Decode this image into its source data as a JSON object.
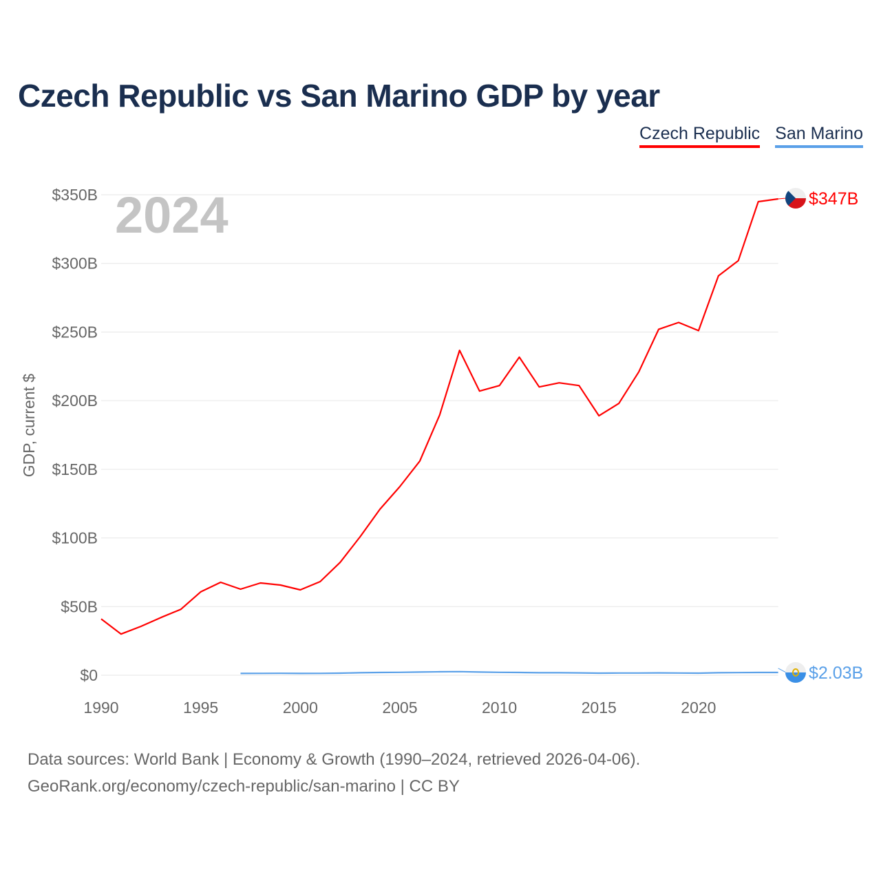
{
  "chart_data": {
    "type": "line",
    "title": "Czech Republic vs San Marino GDP by year",
    "ylabel": "GDP, current $",
    "xlabel": "",
    "year_label": "2024",
    "ylim": [
      0,
      350
    ],
    "xlim": [
      1990,
      2024
    ],
    "yticks": [
      0,
      50,
      100,
      150,
      200,
      250,
      300,
      350
    ],
    "ytick_labels": [
      "$0",
      "$50B",
      "$100B",
      "$150B",
      "$200B",
      "$250B",
      "$300B",
      "$350B"
    ],
    "xticks": [
      1990,
      1995,
      2000,
      2005,
      2010,
      2015,
      2020
    ],
    "xtick_labels": [
      "1990",
      "1995",
      "2000",
      "2005",
      "2010",
      "2015",
      "2020"
    ],
    "grid": true,
    "legend_position": "top-right",
    "series": [
      {
        "name": "Czech Republic",
        "color": "#ff0000",
        "end_label": "$347B",
        "flag": "czech-flag",
        "x": [
          1990,
          1991,
          1992,
          1993,
          1994,
          1995,
          1996,
          1997,
          1998,
          1999,
          2000,
          2001,
          2002,
          2003,
          2004,
          2005,
          2006,
          2007,
          2008,
          2009,
          2010,
          2011,
          2012,
          2013,
          2014,
          2015,
          2016,
          2017,
          2018,
          2019,
          2020,
          2021,
          2022,
          2023,
          2024
        ],
        "values": [
          41,
          30,
          35.6,
          42,
          48,
          60.7,
          67.7,
          62.7,
          67.2,
          65.7,
          62.2,
          68.2,
          82.2,
          100.8,
          120.9,
          137.4,
          156,
          189.6,
          236.7,
          207,
          211,
          231.7,
          210,
          213,
          211,
          189,
          198,
          221,
          252,
          257,
          251,
          291,
          302,
          345,
          347
        ]
      },
      {
        "name": "San Marino",
        "color": "#5aa0e8",
        "end_label": "$2.03B",
        "flag": "san-marino-flag",
        "x": [
          1997,
          1998,
          1999,
          2000,
          2001,
          2002,
          2003,
          2004,
          2005,
          2006,
          2007,
          2008,
          2009,
          2010,
          2011,
          2012,
          2013,
          2014,
          2015,
          2016,
          2017,
          2018,
          2019,
          2020,
          2021,
          2022,
          2023,
          2024
        ],
        "values": [
          1.3,
          1.35,
          1.4,
          1.3,
          1.35,
          1.5,
          1.8,
          2.0,
          2.1,
          2.3,
          2.5,
          2.6,
          2.3,
          2.1,
          2.0,
          1.8,
          1.8,
          1.7,
          1.5,
          1.6,
          1.6,
          1.7,
          1.6,
          1.5,
          1.8,
          1.9,
          2.0,
          2.03
        ]
      }
    ]
  },
  "footer": {
    "line1": "Data sources: World Bank | Economy & Growth (1990–2024, retrieved 2026-04-06).",
    "line2": "GeoRank.org/economy/czech-republic/san-marino | CC BY"
  }
}
